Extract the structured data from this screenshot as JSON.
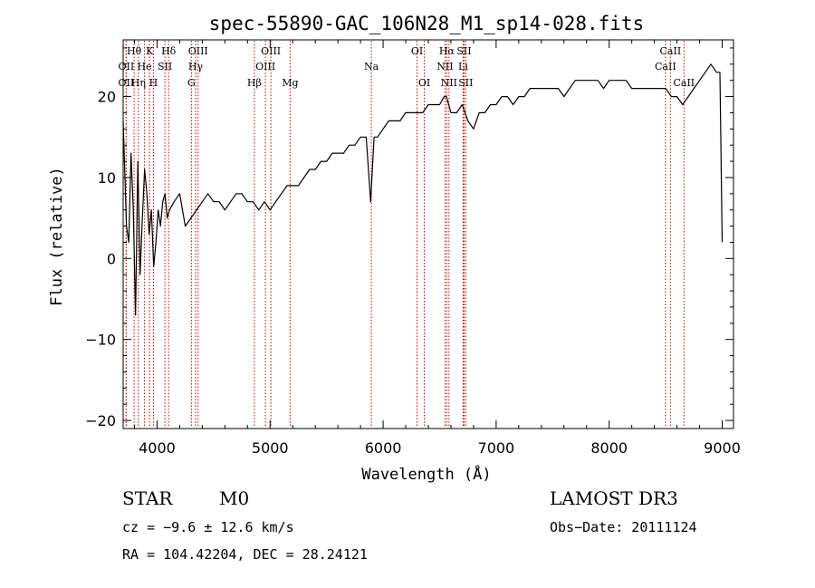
{
  "chart_data": {
    "type": "line",
    "title": "spec-55890-GAC_106N28_M1_sp14-028.fits",
    "xlabel": "Wavelength (Å)",
    "ylabel": "Flux (relative)",
    "xlim": [
      3700,
      9100
    ],
    "ylim": [
      -21,
      27
    ],
    "xticks": [
      4000,
      5000,
      6000,
      7000,
      8000,
      9000
    ],
    "yticks": [
      -20,
      -10,
      0,
      10,
      20
    ],
    "series": [
      {
        "name": "spectrum",
        "x": [
          3700,
          3730,
          3750,
          3770,
          3790,
          3810,
          3830,
          3850,
          3870,
          3890,
          3910,
          3930,
          3950,
          3970,
          3990,
          4010,
          4030,
          4050,
          4070,
          4090,
          4110,
          4150,
          4200,
          4250,
          4300,
          4350,
          4400,
          4450,
          4500,
          4550,
          4600,
          4650,
          4700,
          4750,
          4800,
          4850,
          4900,
          4950,
          5000,
          5050,
          5100,
          5150,
          5200,
          5250,
          5300,
          5350,
          5400,
          5450,
          5500,
          5550,
          5600,
          5650,
          5700,
          5750,
          5800,
          5850,
          5890,
          5920,
          5950,
          6000,
          6050,
          6100,
          6150,
          6200,
          6250,
          6300,
          6350,
          6400,
          6450,
          6500,
          6540,
          6560,
          6580,
          6600,
          6650,
          6700,
          6750,
          6800,
          6850,
          6900,
          6950,
          7000,
          7050,
          7100,
          7150,
          7200,
          7250,
          7300,
          7350,
          7400,
          7450,
          7500,
          7550,
          7600,
          7650,
          7700,
          7750,
          7800,
          7850,
          7900,
          7950,
          8000,
          8050,
          8100,
          8150,
          8200,
          8250,
          8300,
          8350,
          8400,
          8450,
          8500,
          8550,
          8600,
          8650,
          8700,
          8750,
          8800,
          8850,
          8900,
          8950,
          8980,
          9000
        ],
        "y": [
          17,
          4,
          2,
          13,
          6,
          -7,
          12,
          -2,
          5,
          11,
          8,
          3,
          6,
          -1,
          2,
          6,
          4,
          7,
          8,
          5,
          6,
          7,
          8,
          4,
          5,
          6,
          7,
          8,
          7,
          7,
          6,
          7,
          8,
          8,
          7,
          7,
          6,
          7,
          6,
          7,
          8,
          9,
          9,
          9,
          10,
          11,
          11,
          12,
          12,
          13,
          13,
          13,
          14,
          14,
          15,
          15,
          7,
          15,
          15,
          16,
          17,
          17,
          17,
          18,
          18,
          18,
          18,
          19,
          19,
          19,
          20,
          20,
          19,
          18,
          18,
          19,
          17,
          16,
          18,
          18,
          19,
          19,
          20,
          20,
          19,
          20,
          20,
          21,
          21,
          21,
          21,
          21,
          21,
          20,
          21,
          22,
          22,
          22,
          22,
          22,
          21,
          22,
          22,
          22,
          22,
          21,
          21,
          21,
          21,
          21,
          21,
          21,
          20,
          20,
          19,
          20,
          21,
          22,
          23,
          24,
          23,
          23,
          2
        ]
      }
    ],
    "spectral_lines": [
      {
        "label": "OII",
        "x": 3727,
        "row": 2
      },
      {
        "label": "OII",
        "x": 3727,
        "row": 1
      },
      {
        "label": "Hθ",
        "x": 3797,
        "row": 0
      },
      {
        "label": "Hη",
        "x": 3835,
        "row": 2
      },
      {
        "label": "He",
        "x": 3889,
        "row": 1
      },
      {
        "label": "K",
        "x": 3934,
        "row": 0
      },
      {
        "label": "H",
        "x": 3968,
        "row": 2
      },
      {
        "label": "SII",
        "x": 4069,
        "row": 1
      },
      {
        "label": "Hδ",
        "x": 4102,
        "row": 0
      },
      {
        "label": "G",
        "x": 4304,
        "row": 2
      },
      {
        "label": "Hγ",
        "x": 4341,
        "row": 1
      },
      {
        "label": "OIII",
        "x": 4363,
        "row": 0
      },
      {
        "label": "Hβ",
        "x": 4861,
        "row": 2
      },
      {
        "label": "OIII",
        "x": 4959,
        "row": 1
      },
      {
        "label": "OIII",
        "x": 5007,
        "row": 0
      },
      {
        "label": "Mg",
        "x": 5177,
        "row": 2
      },
      {
        "label": "Na",
        "x": 5896,
        "row": 1
      },
      {
        "label": "OI",
        "x": 6300,
        "row": 0
      },
      {
        "label": "OI",
        "x": 6364,
        "row": 2
      },
      {
        "label": "NII",
        "x": 6548,
        "row": 1
      },
      {
        "label": "Hα",
        "x": 6563,
        "row": 0
      },
      {
        "label": "NII",
        "x": 6583,
        "row": 2
      },
      {
        "label": "Li",
        "x": 6708,
        "row": 1
      },
      {
        "label": "SII",
        "x": 6716,
        "row": 0
      },
      {
        "label": "SII",
        "x": 6731,
        "row": 2
      },
      {
        "label": "CaII",
        "x": 8498,
        "row": 1
      },
      {
        "label": "CaII",
        "x": 8542,
        "row": 0
      },
      {
        "label": "CaII",
        "x": 8662,
        "row": 2
      }
    ],
    "line_color": "#cc0000",
    "grid": false,
    "legend": "none"
  },
  "info": {
    "star_type": "STAR",
    "subclass": "M0",
    "survey": "LAMOST DR3",
    "cz": "cz = −9.6 ± 12.6 km/s",
    "obs_date": "Obs−Date: 20111124",
    "radec": "RA = 104.42204, DEC =  28.24121"
  }
}
